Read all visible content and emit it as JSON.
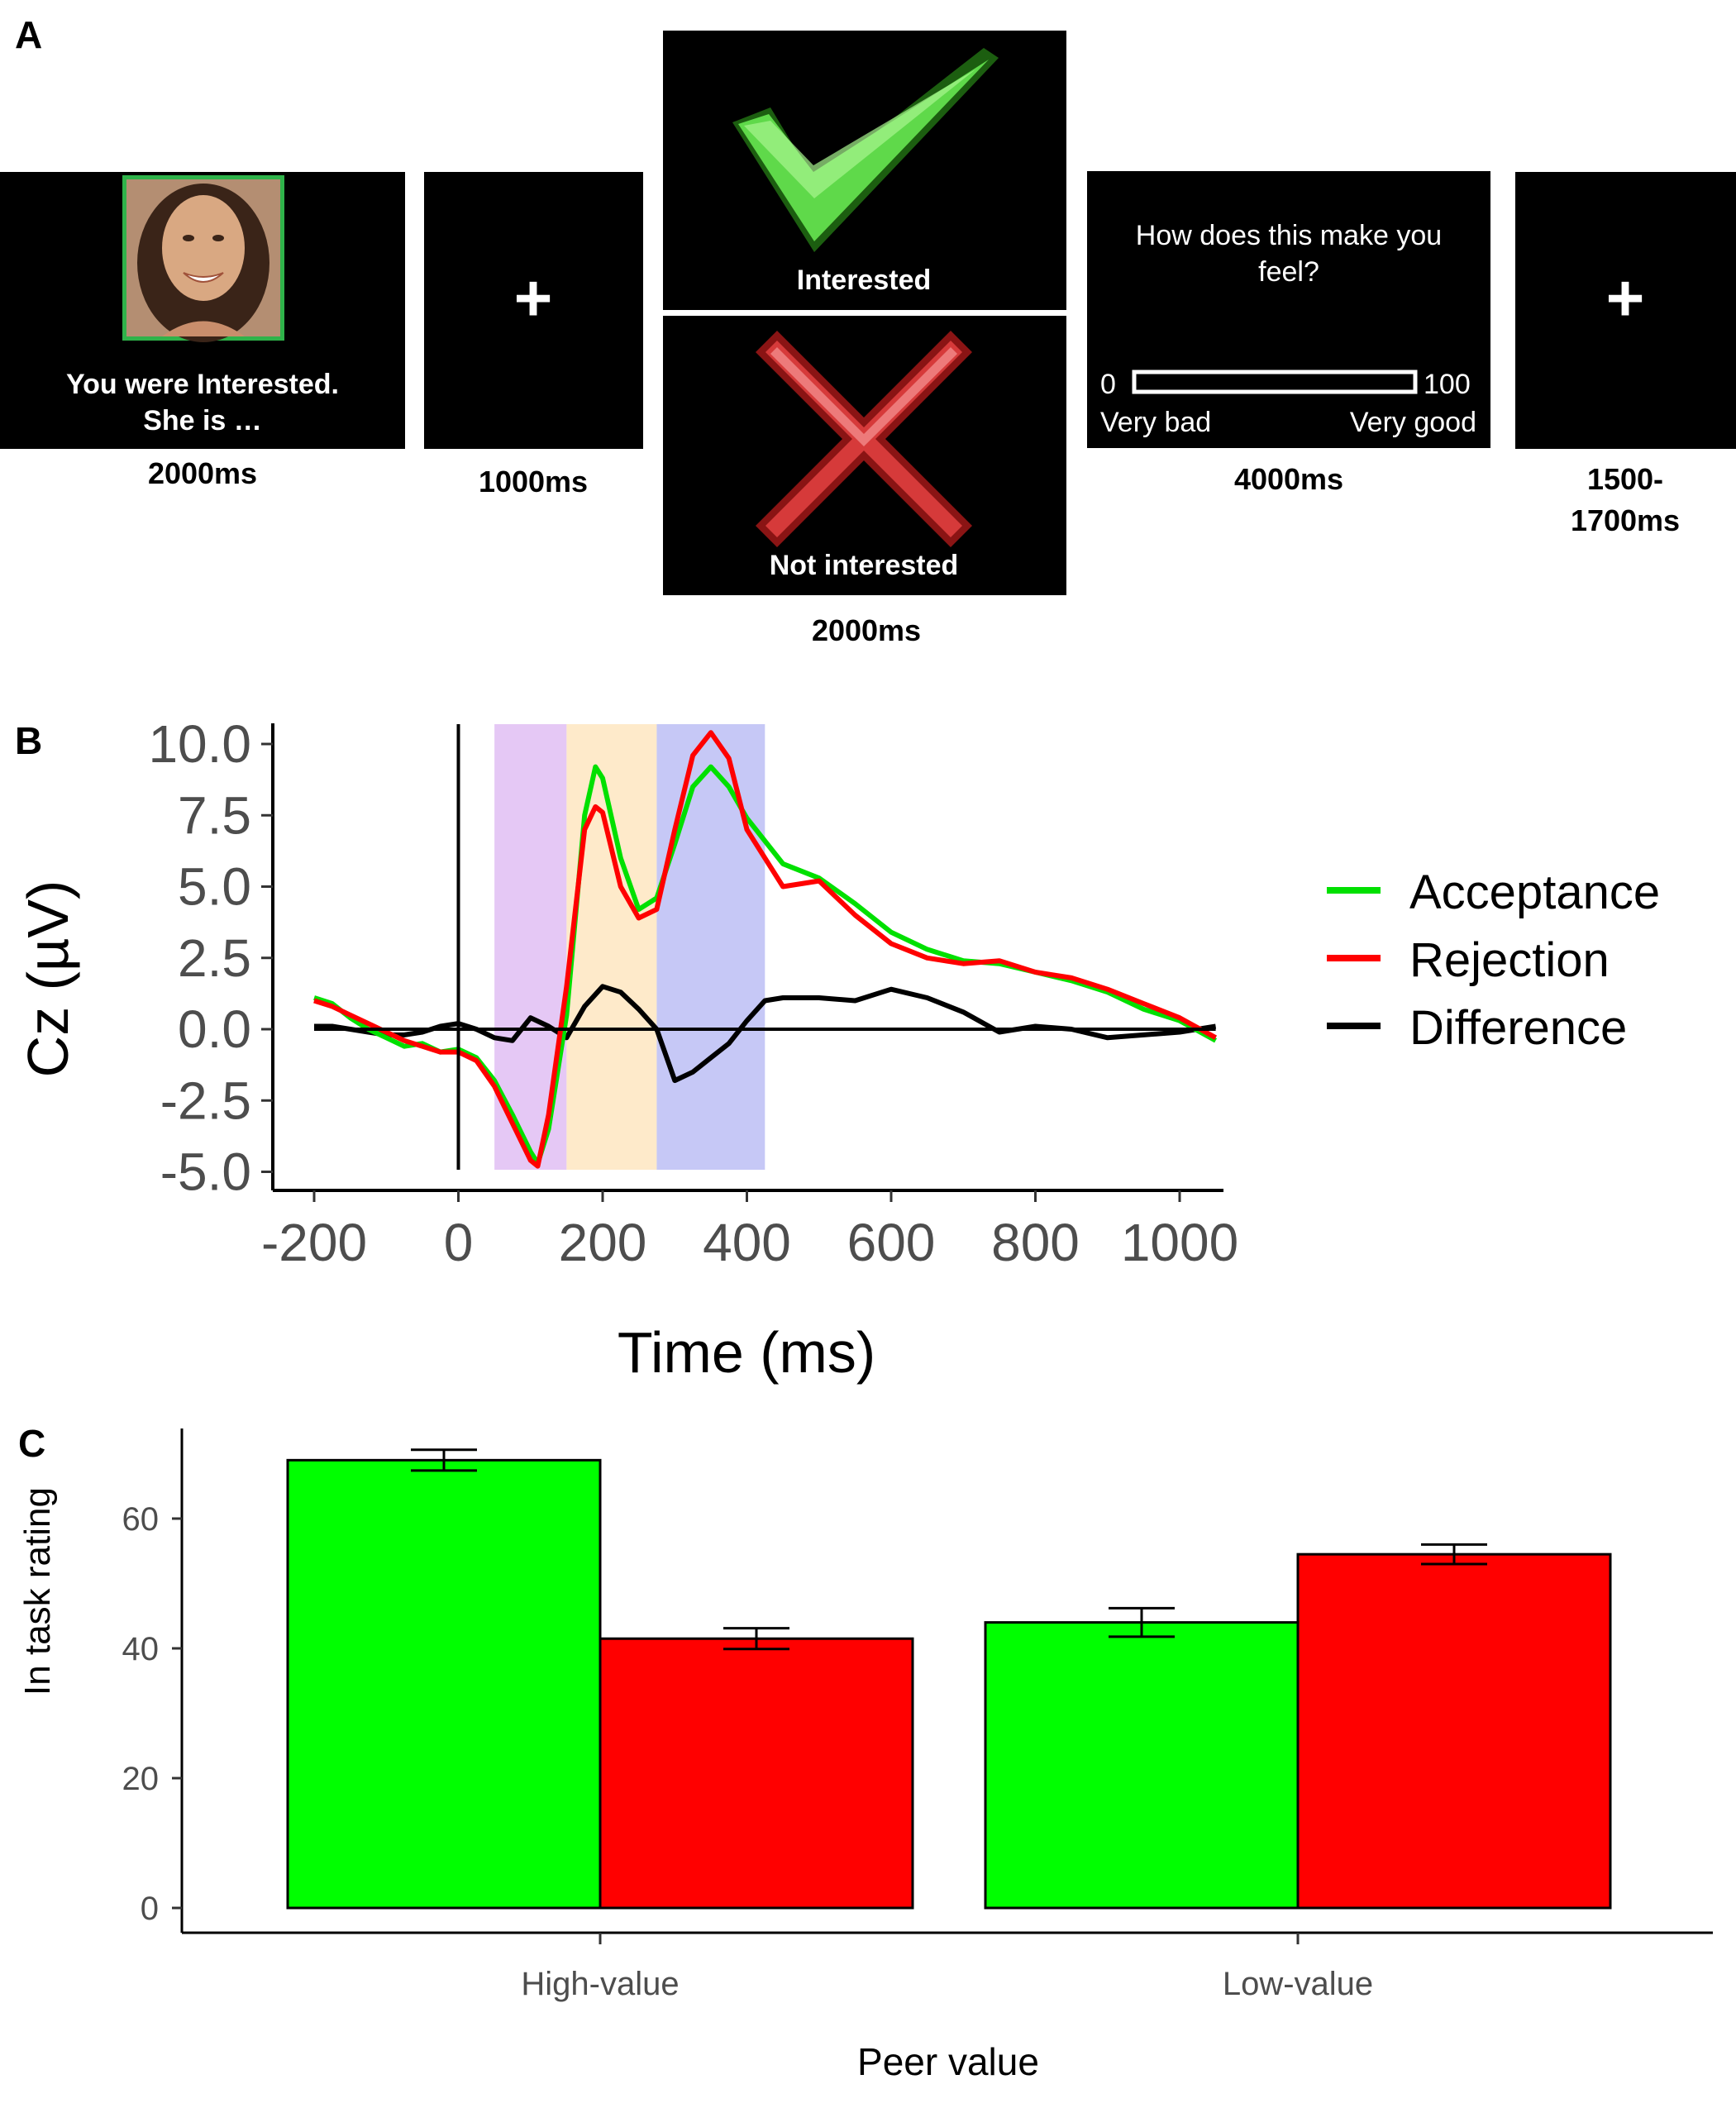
{
  "panel_a": {
    "label": "A",
    "screens": {
      "feedback_prompt": {
        "line1": "You were Interested.",
        "line2": "She is …",
        "duration": "2000ms"
      },
      "fixation1": {
        "symbol": "+",
        "duration": "1000ms"
      },
      "outcome_accept": {
        "label": "Interested"
      },
      "outcome_reject": {
        "label": "Not interested"
      },
      "outcome_duration": "2000ms",
      "rating": {
        "question_line1": "How does this make you",
        "question_line2": "feel?",
        "scale_min": "0",
        "scale_max": "100",
        "label_low": "Very bad",
        "label_high": "Very good",
        "duration": "4000ms"
      },
      "fixation2": {
        "symbol": "+",
        "duration_line1": "1500-",
        "duration_line2": "1700ms"
      }
    },
    "colors": {
      "screen_bg": "#000000",
      "photo_border": "#2fb34a",
      "check": "#5fd94a",
      "cross": "#d63a3a"
    },
    "icons": [
      "face-photo",
      "check-icon",
      "cross-icon",
      "fixation-cross"
    ]
  },
  "panel_b": {
    "label": "B",
    "chart_data": {
      "type": "line",
      "xlabel": "Time (ms)",
      "ylabel": "Cz (µV)",
      "xlim": [
        -200,
        1050
      ],
      "ylim": [
        -5,
        10
      ],
      "xticks": [
        "-200",
        "0",
        "200",
        "400",
        "600",
        "800",
        "1000"
      ],
      "yticks": [
        "10.0",
        "7.5",
        "5.0",
        "2.5",
        "0.0",
        "-2.5",
        "-5.0"
      ],
      "grid": false,
      "legend_position": "right",
      "shaded_windows": [
        {
          "start": 50,
          "end": 150,
          "color": "#dcb6f2"
        },
        {
          "start": 150,
          "end": 275,
          "color": "#fde3b8"
        },
        {
          "start": 275,
          "end": 425,
          "color": "#b3b5f3"
        }
      ],
      "series": [
        {
          "name": "Acceptance",
          "color": "#00e000",
          "x": [
            -200,
            -175,
            -150,
            -125,
            -100,
            -75,
            -50,
            -25,
            0,
            25,
            50,
            75,
            100,
            110,
            125,
            150,
            175,
            190,
            200,
            225,
            250,
            275,
            300,
            325,
            350,
            375,
            400,
            450,
            500,
            550,
            600,
            650,
            700,
            750,
            800,
            850,
            900,
            950,
            1000,
            1050
          ],
          "y": [
            1.1,
            0.9,
            0.4,
            0.0,
            -0.3,
            -0.6,
            -0.5,
            -0.8,
            -0.7,
            -1.0,
            -1.8,
            -3.0,
            -4.3,
            -4.7,
            -3.5,
            0.5,
            7.5,
            9.2,
            8.8,
            6.0,
            4.2,
            4.6,
            6.5,
            8.5,
            9.2,
            8.5,
            7.4,
            5.8,
            5.3,
            4.4,
            3.4,
            2.8,
            2.4,
            2.3,
            2.0,
            1.7,
            1.3,
            0.7,
            0.3,
            -0.4
          ]
        },
        {
          "name": "Rejection",
          "color": "#ff0000",
          "x": [
            -200,
            -175,
            -150,
            -125,
            -100,
            -75,
            -50,
            -25,
            0,
            25,
            50,
            75,
            100,
            110,
            125,
            150,
            175,
            190,
            200,
            225,
            250,
            275,
            300,
            325,
            350,
            375,
            400,
            450,
            500,
            550,
            600,
            650,
            700,
            750,
            800,
            850,
            900,
            950,
            1000,
            1050
          ],
          "y": [
            1.0,
            0.8,
            0.5,
            0.2,
            -0.1,
            -0.4,
            -0.6,
            -0.8,
            -0.8,
            -1.1,
            -2.0,
            -3.3,
            -4.6,
            -4.8,
            -3.0,
            1.5,
            7.0,
            7.8,
            7.6,
            5.0,
            3.9,
            4.2,
            7.0,
            9.6,
            10.4,
            9.5,
            7.0,
            5.0,
            5.2,
            4.0,
            3.0,
            2.5,
            2.3,
            2.4,
            2.0,
            1.8,
            1.4,
            0.9,
            0.4,
            -0.3
          ]
        },
        {
          "name": "Difference",
          "color": "#000000",
          "x": [
            -200,
            -175,
            -150,
            -125,
            -100,
            -75,
            -50,
            -25,
            0,
            25,
            50,
            75,
            100,
            125,
            150,
            175,
            200,
            225,
            250,
            275,
            300,
            325,
            350,
            375,
            400,
            425,
            450,
            500,
            550,
            600,
            650,
            700,
            750,
            800,
            850,
            900,
            950,
            1000,
            1050
          ],
          "y": [
            0.1,
            0.1,
            0.0,
            -0.1,
            -0.2,
            -0.2,
            -0.1,
            0.1,
            0.2,
            0.0,
            -0.3,
            -0.4,
            0.4,
            0.1,
            -0.3,
            0.8,
            1.5,
            1.3,
            0.7,
            0.0,
            -1.8,
            -1.5,
            -1.0,
            -0.5,
            0.3,
            1.0,
            1.1,
            1.1,
            1.0,
            1.4,
            1.1,
            0.6,
            -0.1,
            0.1,
            0.0,
            -0.3,
            -0.2,
            -0.1,
            0.1
          ]
        }
      ]
    }
  },
  "panel_c": {
    "label": "C",
    "chart_data": {
      "type": "bar",
      "xlabel": "Peer value",
      "ylabel": "In task rating",
      "ylim": [
        0,
        72
      ],
      "yticks": [
        "0",
        "20",
        "40",
        "60"
      ],
      "categories": [
        "High-value",
        "Low-value"
      ],
      "series": [
        {
          "name": "Acceptance",
          "color": "#00ff00",
          "values": [
            69,
            44
          ],
          "errors": [
            1.6,
            2.2
          ]
        },
        {
          "name": "Rejection",
          "color": "#ff0000",
          "values": [
            41.5,
            54.5
          ],
          "errors": [
            1.6,
            1.5
          ]
        }
      ]
    }
  }
}
